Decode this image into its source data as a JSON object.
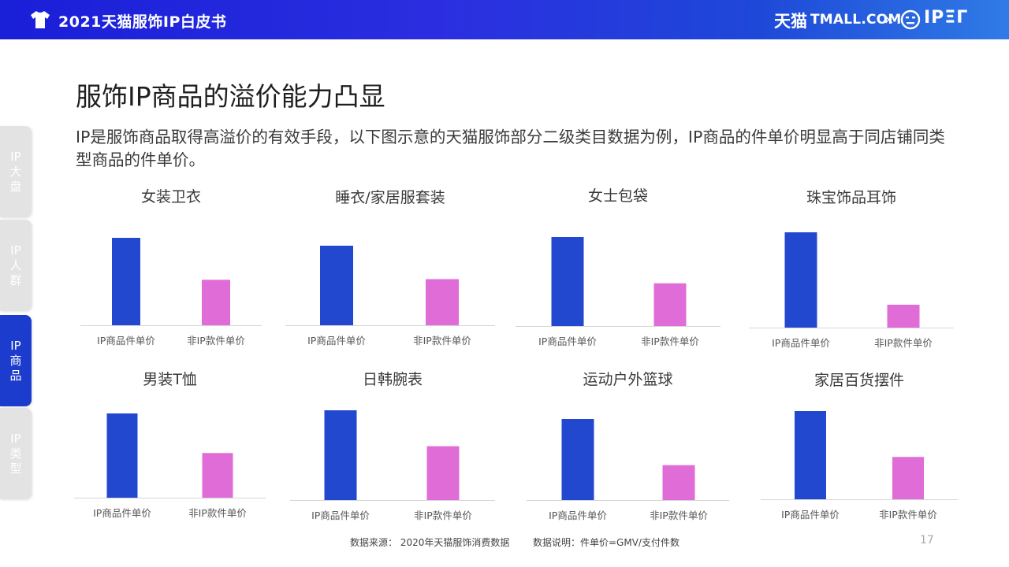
{
  "header": {
    "title": "2021天猫服饰IP白皮书",
    "brand_tmall_cn": "天猫",
    "brand_tmall_en": "TMALL.COM",
    "brand_separator": "×",
    "brand_ip": "IPΞΓ",
    "colors": {
      "bar_start": "#1a1fd8",
      "bar_end": "#2f7be6"
    }
  },
  "sidebar": {
    "items": [
      {
        "label_top": "IP",
        "label_chars": [
          "大",
          "盘"
        ],
        "active": false
      },
      {
        "label_top": "IP",
        "label_chars": [
          "人",
          "群"
        ],
        "active": false
      },
      {
        "label_top": "IP",
        "label_chars": [
          "商",
          "品"
        ],
        "active": true
      },
      {
        "label_top": "IP",
        "label_chars": [
          "类",
          "型"
        ],
        "active": false
      }
    ],
    "active_color": "#1b3ccc",
    "inactive_color": "#e3e3e3"
  },
  "main": {
    "title": "服饰IP商品的溢价能力凸显",
    "subtitle": "IP是服饰商品取得高溢价的有效手段，以下图示意的天猫服饰部分二级类目数据为例，IP商品的件单价明显高于同店铺同类型商品的件单价。"
  },
  "chart_data": [
    {
      "type": "bar",
      "title": "女装卫衣",
      "categories": [
        "IP商品件单价",
        "非IP款件单价"
      ],
      "values": [
        100,
        52
      ],
      "ylim": [
        0,
        100
      ],
      "colors": [
        "#2248d0",
        "#e06cd8"
      ]
    },
    {
      "type": "bar",
      "title": "睡衣/家居服套装",
      "categories": [
        "IP商品件单价",
        "非IP款件单价"
      ],
      "values": [
        100,
        58
      ],
      "ylim": [
        0,
        100
      ],
      "colors": [
        "#2248d0",
        "#e06cd8"
      ]
    },
    {
      "type": "bar",
      "title": "女士包袋",
      "categories": [
        "IP商品件单价",
        "非IP款件单价"
      ],
      "values": [
        100,
        48
      ],
      "ylim": [
        0,
        100
      ],
      "colors": [
        "#2248d0",
        "#e06cd8"
      ]
    },
    {
      "type": "bar",
      "title": "珠宝饰品耳饰",
      "categories": [
        "IP商品件单价",
        "非IP款件单价"
      ],
      "values": [
        100,
        24
      ],
      "ylim": [
        0,
        100
      ],
      "colors": [
        "#2248d0",
        "#e06cd8"
      ]
    },
    {
      "type": "bar",
      "title": "男装T恤",
      "categories": [
        "IP商品件单价",
        "非IP款件单价"
      ],
      "values": [
        100,
        53
      ],
      "ylim": [
        0,
        100
      ],
      "colors": [
        "#2248d0",
        "#e06cd8"
      ]
    },
    {
      "type": "bar",
      "title": "日韩腕表",
      "categories": [
        "IP商品件单价",
        "非IP款件单价"
      ],
      "values": [
        100,
        60
      ],
      "ylim": [
        0,
        100
      ],
      "colors": [
        "#2248d0",
        "#e06cd8"
      ]
    },
    {
      "type": "bar",
      "title": "运动户外篮球",
      "categories": [
        "IP商品件单价",
        "非IP款件单价"
      ],
      "values": [
        100,
        43
      ],
      "ylim": [
        0,
        100
      ],
      "colors": [
        "#2248d0",
        "#e06cd8"
      ]
    },
    {
      "type": "bar",
      "title": "家居百货摆件",
      "categories": [
        "IP商品件单价",
        "非IP款件单价"
      ],
      "values": [
        100,
        48
      ],
      "ylim": [
        0,
        100
      ],
      "colors": [
        "#2248d0",
        "#e06cd8"
      ]
    }
  ],
  "footer": {
    "source": "数据来源：  2020年天猫服饰消费数据",
    "note": "数据说明：件单价=GMV/支付件数",
    "page_number": "17"
  }
}
